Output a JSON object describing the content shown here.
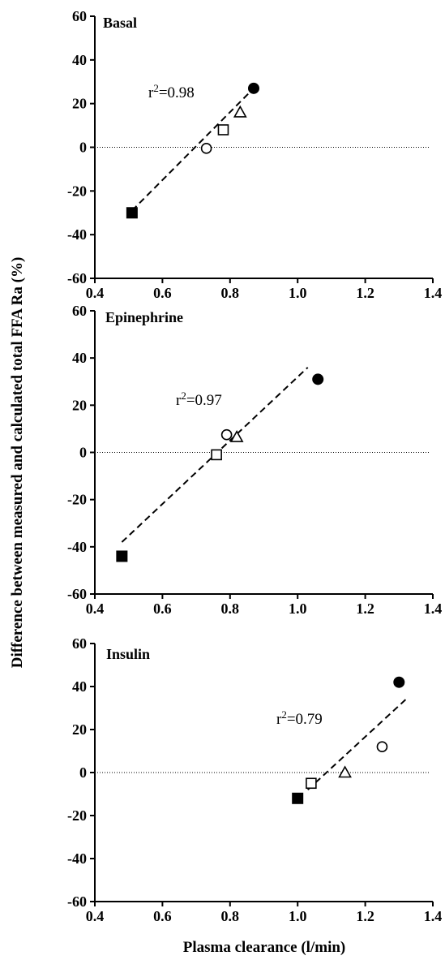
{
  "chart_data": {
    "type": "scatter",
    "ylabel": "Difference between measured and calculated total FFA Ra (%)",
    "xlabel": "Plasma clearance (l/min)",
    "legend": "none",
    "grid": false,
    "panels": [
      {
        "title": "Basal",
        "r2_prefix": "r",
        "r2_sup": "2",
        "r2_value": "=0.98",
        "xlim": [
          0.4,
          1.4
        ],
        "ylim": [
          -60,
          60
        ],
        "x_ticks": [
          "0.4",
          "0.6",
          "0.8",
          "1.0",
          "1.2",
          "1.4"
        ],
        "y_ticks": [
          "60",
          "40",
          "20",
          "0",
          "-20",
          "-40",
          "-60"
        ],
        "zero_line": true,
        "fit_line": {
          "x": [
            0.51,
            0.87
          ],
          "y": [
            -29,
            27
          ]
        },
        "points": [
          {
            "marker": "filled-square",
            "x": 0.51,
            "y": -30
          },
          {
            "marker": "open-circle",
            "x": 0.73,
            "y": -0.5
          },
          {
            "marker": "open-square",
            "x": 0.78,
            "y": 8
          },
          {
            "marker": "open-triangle",
            "x": 0.83,
            "y": 16
          },
          {
            "marker": "filled-circle",
            "x": 0.87,
            "y": 27
          }
        ]
      },
      {
        "title": "Epinephrine",
        "r2_prefix": "r",
        "r2_sup": "2",
        "r2_value": "=0.97",
        "xlim": [
          0.4,
          1.4
        ],
        "ylim": [
          -60,
          60
        ],
        "x_ticks": [
          "0.4",
          "0.6",
          "0.8",
          "1.0",
          "1.2",
          "1.4"
        ],
        "y_ticks": [
          "60",
          "40",
          "20",
          "0",
          "-20",
          "-40",
          "-60"
        ],
        "zero_line": true,
        "fit_line": {
          "x": [
            0.48,
            1.03
          ],
          "y": [
            -38,
            36
          ]
        },
        "points": [
          {
            "marker": "filled-square",
            "x": 0.48,
            "y": -44
          },
          {
            "marker": "open-square",
            "x": 0.76,
            "y": -1
          },
          {
            "marker": "open-circle",
            "x": 0.79,
            "y": 7.5
          },
          {
            "marker": "open-triangle",
            "x": 0.82,
            "y": 6.5
          },
          {
            "marker": "filled-circle",
            "x": 1.06,
            "y": 31
          }
        ]
      },
      {
        "title": "Insulin",
        "r2_prefix": "r",
        "r2_sup": "2",
        "r2_value": "=0.79",
        "xlim": [
          0.4,
          1.4
        ],
        "ylim": [
          -60,
          60
        ],
        "x_ticks": [
          "0.4",
          "0.6",
          "0.8",
          "1.0",
          "1.2",
          "1.4"
        ],
        "y_ticks": [
          "60",
          "40",
          "20",
          "0",
          "-20",
          "-40",
          "-60"
        ],
        "zero_line": true,
        "fit_line": {
          "x": [
            1.03,
            1.32
          ],
          "y": [
            -8,
            34
          ]
        },
        "points": [
          {
            "marker": "filled-square",
            "x": 1.0,
            "y": -12
          },
          {
            "marker": "open-square",
            "x": 1.04,
            "y": -5
          },
          {
            "marker": "open-triangle",
            "x": 1.14,
            "y": 0
          },
          {
            "marker": "open-circle",
            "x": 1.25,
            "y": 12
          },
          {
            "marker": "filled-circle",
            "x": 1.3,
            "y": 42
          }
        ]
      }
    ]
  }
}
